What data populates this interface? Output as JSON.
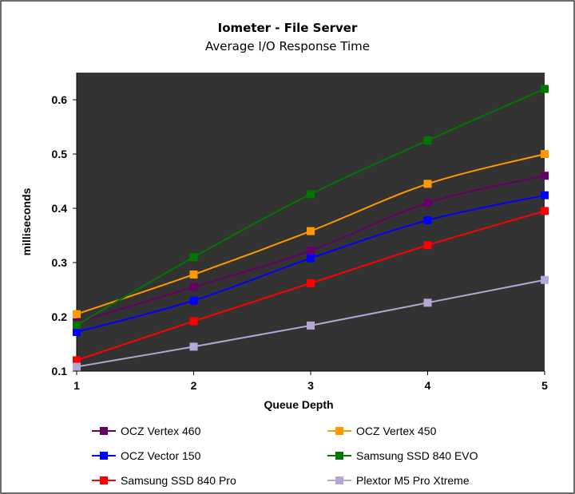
{
  "chart_data": {
    "type": "line",
    "title": "Iometer - File Server",
    "subtitle": "Average I/O Response Time",
    "xlabel": "Queue Depth",
    "ylabel": "milliseconds",
    "x": [
      1,
      2,
      3,
      4,
      5
    ],
    "xlim": [
      1,
      5
    ],
    "ylim": [
      0.1,
      0.65
    ],
    "yticks": [
      0.1,
      0.2,
      0.3,
      0.4,
      0.5,
      0.6
    ],
    "ytick_labels": [
      "0.1",
      "0.2",
      "0.3",
      "0.4",
      "0.5",
      "0.6"
    ],
    "xtick_labels": [
      "1",
      "2",
      "3",
      "4",
      "5"
    ],
    "grid": false,
    "plot_background": "#333333",
    "legend_position": "bottom",
    "series": [
      {
        "name": "OCZ Vertex 460",
        "color": "#660066",
        "values": [
          0.19,
          0.255,
          0.322,
          0.41,
          0.46
        ]
      },
      {
        "name": "OCZ Vertex 450",
        "color": "#ff9900",
        "values": [
          0.205,
          0.278,
          0.358,
          0.445,
          0.5
        ]
      },
      {
        "name": "OCZ Vector 150",
        "color": "#0000ff",
        "values": [
          0.172,
          0.23,
          0.308,
          0.378,
          0.424
        ]
      },
      {
        "name": "Samsung SSD 840 EVO",
        "color": "#007700",
        "values": [
          0.185,
          0.31,
          0.426,
          0.525,
          0.62
        ]
      },
      {
        "name": "Samsung SSD 840 Pro",
        "color": "#ff0000",
        "values": [
          0.12,
          0.192,
          0.262,
          0.332,
          0.395
        ]
      },
      {
        "name": "Plextor M5 Pro Xtreme",
        "color": "#b4a7d6",
        "values": [
          0.108,
          0.145,
          0.184,
          0.226,
          0.268
        ]
      }
    ]
  }
}
